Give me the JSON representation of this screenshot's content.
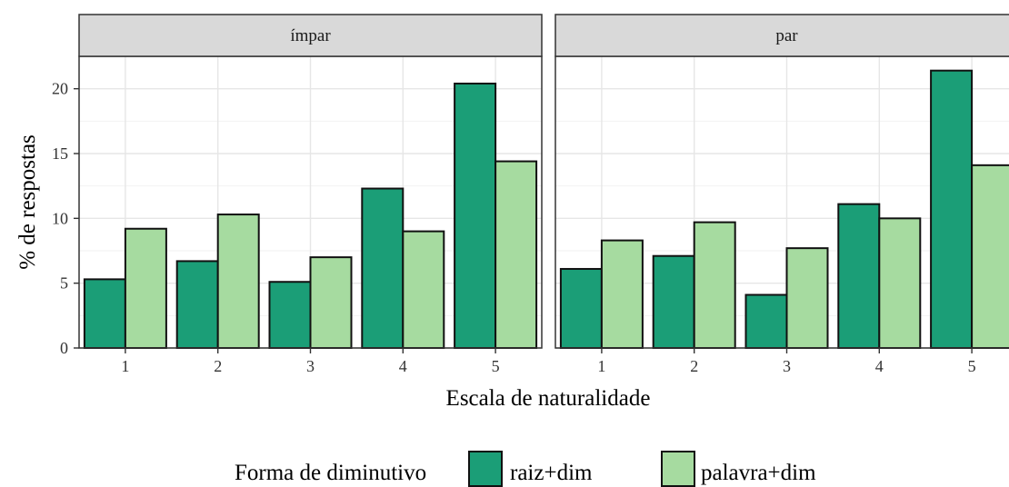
{
  "chart_data": {
    "type": "bar",
    "xlabel": "Escala de naturalidade",
    "ylabel": "% de respostas",
    "ylim": [
      0,
      22.5
    ],
    "yticks": [
      0,
      5,
      10,
      15,
      20
    ],
    "categories": [
      "1",
      "2",
      "3",
      "4",
      "5"
    ],
    "grid": true,
    "legend": {
      "title": "Forma de diminutivo",
      "position": "bottom",
      "entries": [
        "raiz+dim",
        "palavra+dim"
      ]
    },
    "colors": {
      "raiz+dim": "#1b9e77",
      "palavra+dim": "#a6dba0"
    },
    "panels": [
      {
        "label": "ímpar",
        "series": [
          {
            "name": "raiz+dim",
            "values": [
              5.3,
              6.7,
              5.1,
              12.3,
              20.4
            ]
          },
          {
            "name": "palavra+dim",
            "values": [
              9.2,
              10.3,
              7.0,
              9.0,
              14.4
            ]
          }
        ]
      },
      {
        "label": "par",
        "series": [
          {
            "name": "raiz+dim",
            "values": [
              6.1,
              7.1,
              4.1,
              11.1,
              21.4
            ]
          },
          {
            "name": "palavra+dim",
            "values": [
              8.3,
              9.7,
              7.7,
              10.0,
              14.1
            ]
          }
        ]
      }
    ]
  }
}
